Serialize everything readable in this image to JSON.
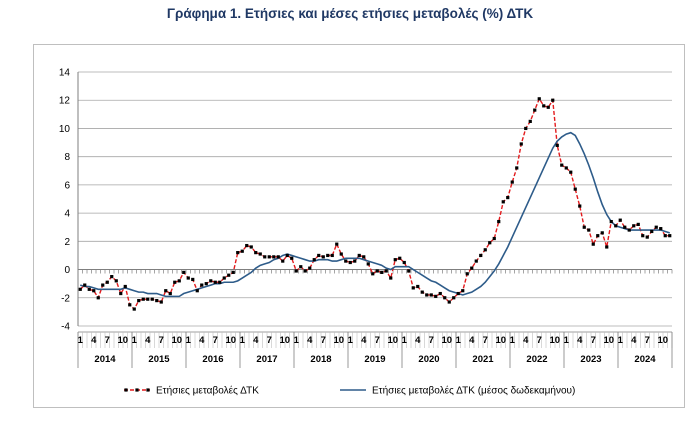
{
  "chart_data": {
    "type": "line",
    "title": "Γράφημα 1. Ετήσιες και μέσες ετήσιες μεταβολές (%) ΔΤΚ",
    "xlabel": "",
    "ylabel": "",
    "ylim": [
      -4,
      14
    ],
    "yticks": [
      "14",
      "12",
      "10",
      "8",
      "6",
      "4",
      "2",
      "0",
      "-2",
      "-4"
    ],
    "grid": true,
    "legend": "bottom",
    "years": [
      "2014",
      "2015",
      "2016",
      "2017",
      "2018",
      "2019",
      "2020",
      "2021",
      "2022",
      "2023",
      "2024"
    ],
    "month_ticks": [
      "1",
      "4",
      "7",
      "10"
    ],
    "series": [
      {
        "name": "Ετήσιες μεταβολές ΔΤΚ",
        "color": "#e31a1c",
        "marker_color": "#000000",
        "style": "dashed-markers",
        "values": [
          -1.4,
          -1.1,
          -1.4,
          -1.5,
          -2.0,
          -1.1,
          -0.9,
          -0.5,
          -0.8,
          -1.7,
          -1.2,
          -2.5,
          -2.8,
          -2.2,
          -2.1,
          -2.1,
          -2.1,
          -2.2,
          -2.3,
          -1.5,
          -1.7,
          -0.9,
          -0.8,
          -0.2,
          -0.6,
          -0.7,
          -1.5,
          -1.1,
          -1.0,
          -0.8,
          -0.9,
          -0.9,
          -0.6,
          -0.4,
          -0.2,
          1.2,
          1.3,
          1.7,
          1.6,
          1.2,
          1.1,
          0.9,
          0.9,
          0.9,
          0.9,
          0.6,
          1.0,
          0.8,
          -0.1,
          0.2,
          -0.1,
          0.1,
          0.7,
          1.0,
          0.9,
          1.0,
          1.0,
          1.8,
          1.1,
          0.6,
          0.5,
          0.6,
          1.0,
          0.9,
          0.4,
          -0.3,
          -0.1,
          -0.2,
          -0.1,
          -0.6,
          0.7,
          0.8,
          0.5,
          -0.1,
          -1.3,
          -1.2,
          -1.6,
          -1.8,
          -1.8,
          -1.9,
          -1.7,
          -2.0,
          -2.3,
          -2.0,
          -1.7,
          -1.5,
          -0.3,
          0.1,
          0.6,
          1.0,
          1.4,
          1.9,
          2.2,
          3.4,
          4.8,
          5.1,
          6.2,
          7.2,
          8.9,
          10.0,
          10.5,
          11.3,
          12.1,
          11.6,
          11.5,
          12.0,
          8.8,
          7.4,
          7.2,
          6.9,
          5.7,
          4.5,
          3.0,
          2.8,
          1.8,
          2.4,
          2.6,
          1.6,
          3.4,
          3.1,
          3.5,
          3.0,
          2.8,
          3.1,
          3.2,
          2.4,
          2.3,
          2.7,
          3.0,
          2.9,
          2.4,
          2.4
        ]
      },
      {
        "name": "Ετήσιες μεταβολές ΔΤΚ (μέσος δωδεκαμήνου)",
        "color": "#2e5c8a",
        "style": "solid",
        "values": [
          -1.1,
          -1.2,
          -1.2,
          -1.3,
          -1.4,
          -1.4,
          -1.4,
          -1.4,
          -1.4,
          -1.4,
          -1.3,
          -1.4,
          -1.5,
          -1.6,
          -1.6,
          -1.7,
          -1.7,
          -1.7,
          -1.8,
          -1.9,
          -1.9,
          -1.9,
          -1.9,
          -1.7,
          -1.6,
          -1.5,
          -1.4,
          -1.3,
          -1.2,
          -1.1,
          -1.0,
          -1.0,
          -0.9,
          -0.9,
          -0.9,
          -0.8,
          -0.6,
          -0.4,
          -0.2,
          0.1,
          0.3,
          0.4,
          0.5,
          0.7,
          0.8,
          1.0,
          1.1,
          1.0,
          0.9,
          0.8,
          0.7,
          0.6,
          0.6,
          0.7,
          0.7,
          0.7,
          0.6,
          0.6,
          0.7,
          0.8,
          0.8,
          0.8,
          0.8,
          0.7,
          0.6,
          0.5,
          0.4,
          0.3,
          0.1,
          0.0,
          0.2,
          0.2,
          0.2,
          0.2,
          0.0,
          -0.2,
          -0.4,
          -0.6,
          -0.8,
          -0.9,
          -1.1,
          -1.3,
          -1.5,
          -1.6,
          -1.7,
          -1.8,
          -1.7,
          -1.6,
          -1.4,
          -1.2,
          -0.9,
          -0.5,
          -0.1,
          0.4,
          1.0,
          1.6,
          2.3,
          3.0,
          3.7,
          4.4,
          5.1,
          5.8,
          6.5,
          7.2,
          7.9,
          8.6,
          9.1,
          9.4,
          9.6,
          9.7,
          9.5,
          8.9,
          8.2,
          7.4,
          6.5,
          5.5,
          4.6,
          3.9,
          3.4,
          3.1,
          3.0,
          2.9,
          2.8,
          2.8,
          2.8,
          2.8,
          2.8,
          2.8,
          2.8,
          2.8,
          2.7,
          2.6
        ]
      }
    ]
  }
}
